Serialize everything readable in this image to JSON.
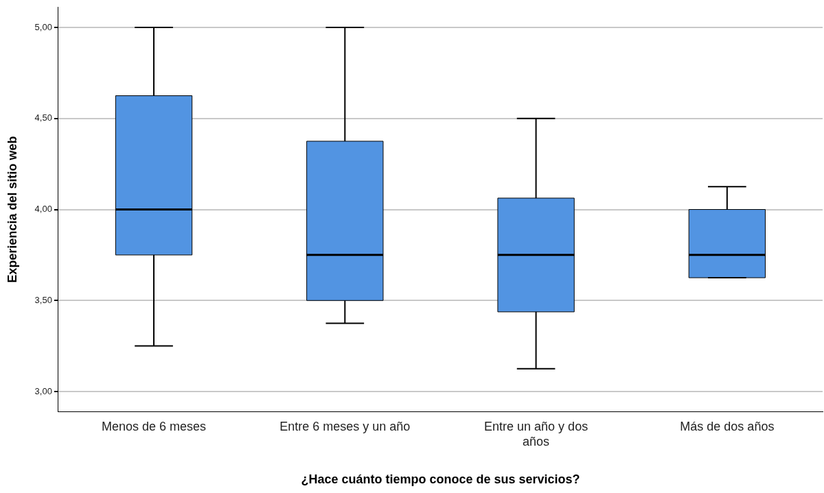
{
  "chart_data": {
    "type": "box",
    "xlabel": "¿Hace cuánto tiempo conoce de sus servicios?",
    "ylabel": "Experiencia del sitio web",
    "categories": [
      "Menos de 6 meses",
      "Entre 6 meses y un año",
      "Entre un año y dos años",
      "Más de dos años"
    ],
    "boxes": [
      {
        "low": 3.25,
        "q1": 3.75,
        "median": 4.0,
        "q3": 4.625,
        "high": 5.0
      },
      {
        "low": 3.375,
        "q1": 3.5,
        "median": 3.75,
        "q3": 4.375,
        "high": 5.0
      },
      {
        "low": 3.125,
        "q1": 3.4375,
        "median": 3.75,
        "q3": 4.0625,
        "high": 4.5
      },
      {
        "low": 3.625,
        "q1": 3.625,
        "median": 3.75,
        "q3": 4.0,
        "high": 4.125
      }
    ],
    "color": "#5294e2",
    "ylim": [
      2.89,
      5.11
    ],
    "yticks": [
      {
        "value": 3,
        "label": "3,00"
      },
      {
        "value": 3.5,
        "label": "3,50"
      },
      {
        "value": 4,
        "label": "4,00"
      },
      {
        "value": 4.5,
        "label": "4,50"
      },
      {
        "value": 5,
        "label": "5,00"
      }
    ],
    "grid": "y",
    "legend": false
  }
}
